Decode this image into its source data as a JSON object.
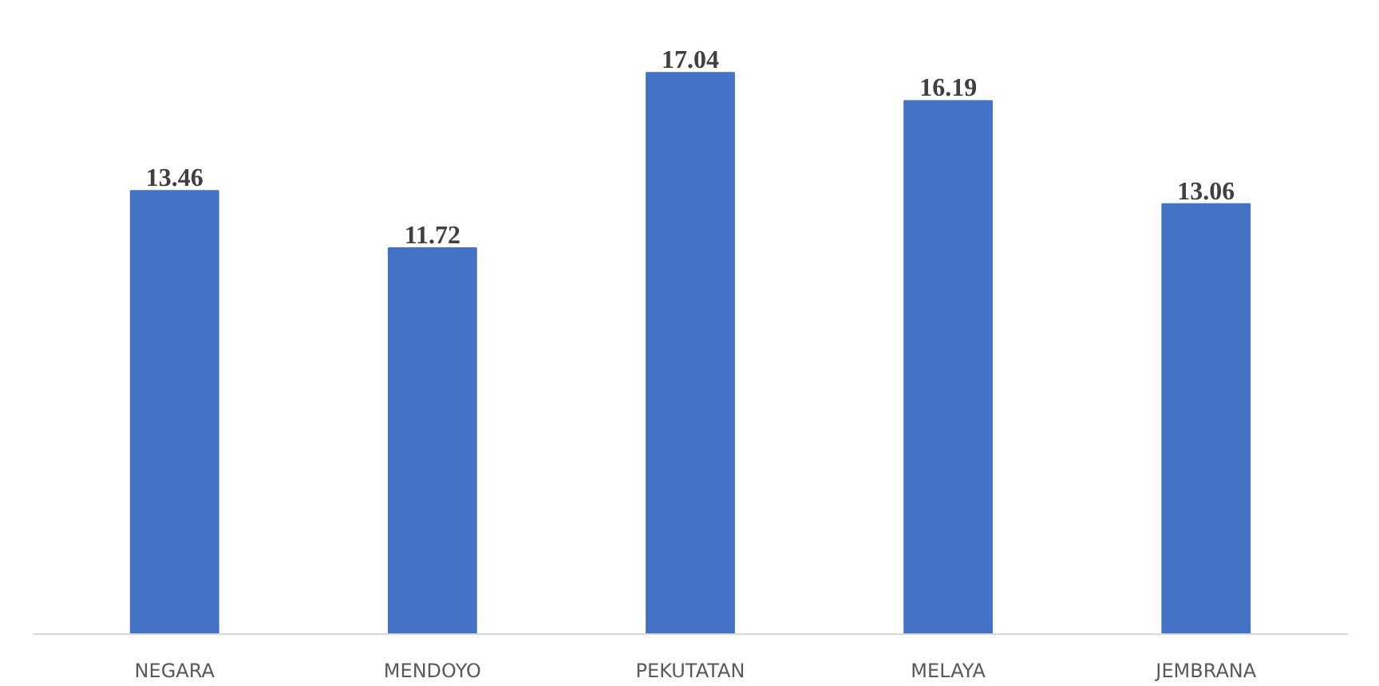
{
  "chart_data": {
    "type": "bar",
    "categories": [
      "NEGARA",
      "MENDOYO",
      "PEKUTATAN",
      "MELAYA",
      "JEMBRANA"
    ],
    "values": [
      13.46,
      11.72,
      17.04,
      16.19,
      13.06
    ],
    "color": "#4472c4",
    "data_labels": true,
    "grid": false
  }
}
